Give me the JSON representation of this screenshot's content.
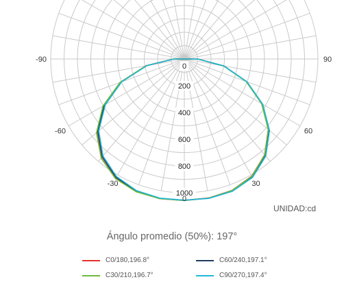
{
  "chart_data": {
    "type": "polar-line",
    "unit_label": "UNIDAD:cd",
    "subtitle": "Ángulo promedio (50%): 197°",
    "angle_labels": [
      {
        "angle": -90,
        "text": "-90"
      },
      {
        "angle": 90,
        "text": "90"
      },
      {
        "angle": -60,
        "text": "-60"
      },
      {
        "angle": 60,
        "text": "60"
      },
      {
        "angle": -30,
        "text": "-30"
      },
      {
        "angle": 30,
        "text": "30"
      },
      {
        "angle": 0,
        "text": "0"
      }
    ],
    "radial_ticks": [
      0,
      200,
      400,
      600,
      800,
      1000
    ],
    "r_max": 1000,
    "grid": true,
    "legend_position": "bottom",
    "series": [
      {
        "name": "C0/180,196.8°",
        "color": "#e4312a",
        "points": [
          [
            -95,
            0
          ],
          [
            -90,
            80
          ],
          [
            -80,
            290
          ],
          [
            -70,
            510
          ],
          [
            -60,
            700
          ],
          [
            -50,
            855
          ],
          [
            -40,
            965
          ],
          [
            -30,
            1030
          ],
          [
            -20,
            1055
          ],
          [
            -10,
            1060
          ],
          [
            0,
            1058
          ],
          [
            10,
            1055
          ],
          [
            20,
            1045
          ],
          [
            30,
            1010
          ],
          [
            40,
            935
          ],
          [
            50,
            820
          ],
          [
            60,
            670
          ],
          [
            70,
            495
          ],
          [
            80,
            300
          ],
          [
            90,
            100
          ],
          [
            95,
            0
          ]
        ]
      },
      {
        "name": "C60/240,197.1°",
        "color": "#1f3b5e",
        "points": [
          [
            -95,
            0
          ],
          [
            -90,
            80
          ],
          [
            -80,
            288
          ],
          [
            -70,
            505
          ],
          [
            -60,
            692
          ],
          [
            -50,
            845
          ],
          [
            -40,
            955
          ],
          [
            -30,
            1022
          ],
          [
            -20,
            1050
          ],
          [
            -10,
            1058
          ],
          [
            0,
            1056
          ],
          [
            10,
            1056
          ],
          [
            20,
            1048
          ],
          [
            30,
            1015
          ],
          [
            40,
            940
          ],
          [
            50,
            825
          ],
          [
            60,
            672
          ],
          [
            70,
            495
          ],
          [
            80,
            300
          ],
          [
            90,
            100
          ],
          [
            95,
            0
          ]
        ]
      },
      {
        "name": "C30/210,196.7°",
        "color": "#6cbb3c",
        "points": [
          [
            -95,
            0
          ],
          [
            -90,
            82
          ],
          [
            -80,
            292
          ],
          [
            -70,
            512
          ],
          [
            -60,
            703
          ],
          [
            -50,
            858
          ],
          [
            -40,
            968
          ],
          [
            -30,
            1032
          ],
          [
            -20,
            1056
          ],
          [
            -10,
            1060
          ],
          [
            0,
            1058
          ],
          [
            10,
            1056
          ],
          [
            20,
            1046
          ],
          [
            30,
            1012
          ],
          [
            40,
            936
          ],
          [
            50,
            820
          ],
          [
            60,
            668
          ],
          [
            70,
            492
          ],
          [
            80,
            298
          ],
          [
            90,
            100
          ],
          [
            95,
            0
          ]
        ]
      },
      {
        "name": "C90/270,197.4°",
        "color": "#21b6d8",
        "points": [
          [
            -95,
            0
          ],
          [
            -90,
            78
          ],
          [
            -80,
            282
          ],
          [
            -70,
            498
          ],
          [
            -60,
            683
          ],
          [
            -50,
            836
          ],
          [
            -40,
            947
          ],
          [
            -30,
            1015
          ],
          [
            -20,
            1047
          ],
          [
            -10,
            1056
          ],
          [
            0,
            1056
          ],
          [
            10,
            1058
          ],
          [
            20,
            1052
          ],
          [
            30,
            1022
          ],
          [
            40,
            948
          ],
          [
            50,
            832
          ],
          [
            60,
            678
          ],
          [
            70,
            500
          ],
          [
            80,
            302
          ],
          [
            90,
            102
          ],
          [
            95,
            0
          ]
        ]
      }
    ]
  }
}
